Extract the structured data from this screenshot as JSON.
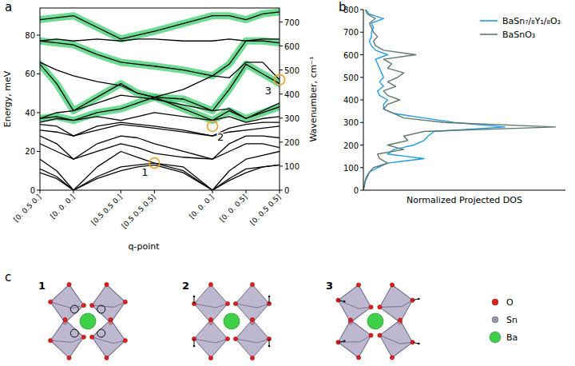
{
  "chart_data": [
    {
      "type": "line",
      "title": "a",
      "x_label": "q-point",
      "y_label": "Energy, meV",
      "y2_label": "Wavenumber, cm⁻¹",
      "color": "#000000",
      "x": [
        0,
        0.25,
        0.5,
        0.854,
        1.207,
        1.457,
        1.707,
        2.14,
        2.573,
        2.823,
        3.073,
        3.323,
        3.573
      ],
      "xlim": [
        0,
        3.573
      ],
      "xticks": [
        {
          "value": 0,
          "label": "[0. 0.5 0.]"
        },
        {
          "value": 0.5,
          "label": "[0. 0. 0.]"
        },
        {
          "value": 1.207,
          "label": "[0.5 0.5 0.]"
        },
        {
          "value": 1.707,
          "label": "[0.5 0.5 0.5]"
        },
        {
          "value": 2.573,
          "label": "[0. 0. 0.]"
        },
        {
          "value": 3.073,
          "label": "[0. 0. 0.5]"
        },
        {
          "value": 3.573,
          "label": "[0. 0.5 0.5]"
        }
      ],
      "ylim": [
        0,
        94
      ],
      "yticks": [
        0,
        20,
        40,
        60,
        80
      ],
      "y2lim": [
        0,
        758.2
      ],
      "y2ticks": [
        0,
        100,
        200,
        300,
        400,
        500,
        600,
        700
      ],
      "series": [
        {
          "type": "band",
          "color": "#3ccf6e",
          "values": [
            37,
            38,
            36,
            40,
            42,
            45,
            48,
            42,
            36,
            41,
            37,
            40,
            43
          ]
        },
        {
          "type": "band",
          "color": "#3ccf6e",
          "values": [
            65,
            55,
            41,
            48,
            55,
            50,
            48,
            47,
            41,
            52,
            65,
            60,
            55
          ]
        },
        {
          "type": "band",
          "color": "#3ccf6e",
          "values": [
            77,
            76,
            75,
            70,
            66,
            65,
            64,
            62,
            59,
            65,
            77,
            77,
            76
          ]
        },
        {
          "type": "band",
          "color": "#3ccf6e",
          "values": [
            88,
            89,
            90,
            84,
            78,
            80,
            82,
            86,
            90,
            90,
            88,
            91,
            92
          ]
        },
        {
          "values": [
            9,
            6,
            0,
            6,
            10,
            12,
            13,
            9,
            0,
            5,
            9,
            12,
            13
          ]
        },
        {
          "values": [
            11,
            7,
            0,
            7,
            12,
            13,
            14,
            10,
            0,
            6,
            11,
            12,
            13
          ]
        },
        {
          "values": [
            16,
            10,
            0,
            12,
            20,
            17,
            14,
            12,
            0,
            10,
            16,
            18,
            20
          ]
        },
        {
          "values": [
            24,
            20,
            16,
            20,
            24,
            22,
            19,
            17,
            16,
            20,
            24,
            24,
            22
          ]
        },
        {
          "values": [
            28,
            24,
            16,
            24,
            28,
            27,
            24,
            20,
            16,
            24,
            28,
            28,
            27
          ]
        },
        {
          "values": [
            31,
            30,
            28,
            31,
            34,
            33,
            32,
            30,
            28,
            30,
            31,
            32,
            33
          ]
        },
        {
          "values": [
            34,
            33,
            28,
            33,
            35,
            34,
            33,
            31,
            28,
            32,
            34,
            35,
            35
          ]
        },
        {
          "values": [
            35,
            37,
            36,
            38,
            36,
            38,
            40,
            38,
            36,
            38,
            35,
            37,
            38
          ]
        },
        {
          "values": [
            37,
            38,
            36,
            40,
            42,
            45,
            48,
            42,
            36,
            41,
            37,
            40,
            43
          ]
        },
        {
          "values": [
            37,
            40,
            41,
            45,
            49,
            48,
            47,
            44,
            41,
            42,
            37,
            41,
            45
          ]
        },
        {
          "values": [
            65,
            55,
            41,
            48,
            55,
            50,
            48,
            47,
            41,
            52,
            65,
            60,
            55
          ]
        },
        {
          "values": [
            66,
            62,
            59,
            56,
            54,
            50,
            48,
            52,
            59,
            58,
            66,
            66,
            57
          ]
        },
        {
          "values": [
            77,
            76,
            75,
            70,
            66,
            65,
            64,
            62,
            59,
            65,
            77,
            77,
            76
          ]
        },
        {
          "values": [
            77,
            78,
            77,
            78,
            77,
            78,
            78,
            77,
            77,
            78,
            77,
            78,
            78
          ]
        },
        {
          "values": [
            88,
            89,
            90,
            84,
            78,
            80,
            82,
            86,
            90,
            90,
            88,
            91,
            92
          ]
        }
      ],
      "annotations": [
        {
          "text": "1",
          "x": 1.707,
          "y": 14
        },
        {
          "text": "2",
          "x": 2.573,
          "y": 33
        },
        {
          "text": "3",
          "x": 3.573,
          "y": 57
        }
      ]
    },
    {
      "type": "line",
      "title": "b",
      "orientation": "horizontal",
      "x_label": "Normalized Projected DOS",
      "tick_labels": "x",
      "legend": "upper right",
      "x": [
        0,
        20,
        40,
        60,
        80,
        100,
        120,
        140,
        160,
        180,
        200,
        220,
        240,
        260,
        280,
        300,
        320,
        340,
        360,
        380,
        400,
        420,
        440,
        460,
        480,
        500,
        520,
        540,
        560,
        580,
        600,
        620,
        640,
        660,
        680,
        700,
        720,
        740,
        760,
        780,
        800
      ],
      "xlim": [
        0,
        800
      ],
      "xticks": [
        0,
        100,
        200,
        300,
        400,
        500,
        600,
        700,
        800
      ],
      "ylim": [
        0,
        1
      ],
      "series": [
        {
          "name": "BaSn₇/₈Y₁/₈O₃",
          "color": "#1f9be6",
          "values": [
            0,
            0.004,
            0.008,
            0.015,
            0.03,
            0.07,
            0.12,
            0.3,
            0.12,
            0.15,
            0.25,
            0.3,
            0.32,
            0.35,
            0.7,
            0.45,
            0.3,
            0.15,
            0.1,
            0.1,
            0.12,
            0.08,
            0.07,
            0.1,
            0.08,
            0.1,
            0.09,
            0.08,
            0.07,
            0.06,
            0.12,
            0.06,
            0.04,
            0.03,
            0.04,
            0.04,
            0.05,
            0.04,
            0.1,
            0.03,
            0.01
          ]
        },
        {
          "name": "BaSnO₃",
          "color": "#5f7a6c",
          "values": [
            0,
            0.005,
            0.01,
            0.02,
            0.03,
            0.05,
            0.12,
            0.08,
            0.07,
            0.2,
            0.12,
            0.22,
            0.2,
            0.3,
            0.95,
            0.4,
            0.2,
            0.15,
            0.1,
            0.12,
            0.18,
            0.12,
            0.1,
            0.16,
            0.12,
            0.17,
            0.2,
            0.12,
            0.14,
            0.1,
            0.26,
            0.1,
            0.06,
            0.05,
            0.07,
            0.05,
            0.04,
            0.03,
            0.06,
            0.02,
            0.01
          ]
        }
      ]
    }
  ],
  "diagram": {
    "label": "c",
    "structures": [
      {
        "label": "1"
      },
      {
        "label": "2"
      },
      {
        "label": "3"
      }
    ],
    "legend": [
      {
        "label": "O",
        "color": "#e0201c"
      },
      {
        "label": "Sn",
        "color": "#9a93a8"
      },
      {
        "label": "Ba",
        "color": "#3fd04a"
      }
    ]
  }
}
